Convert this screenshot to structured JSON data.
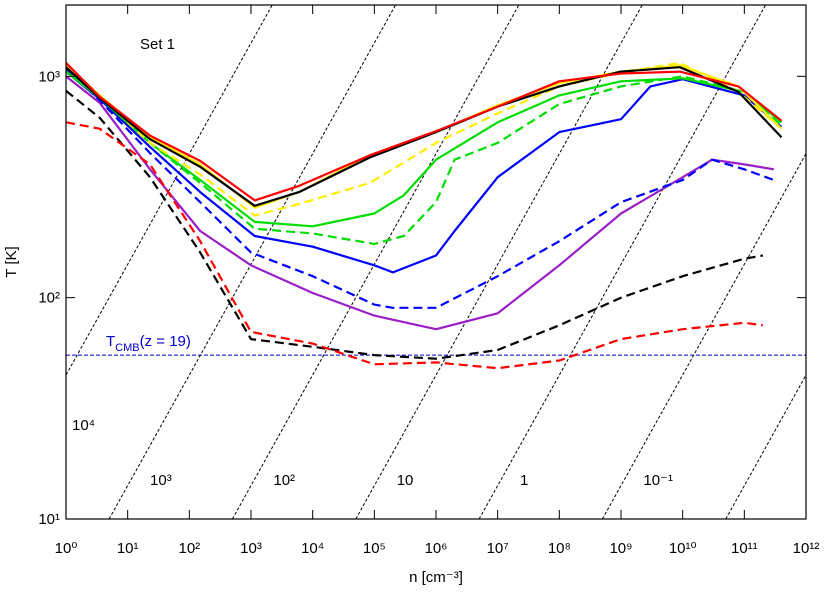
{
  "chart_data": {
    "type": "line",
    "annotation": "Set 1",
    "xlabel": "n [cm⁻³]",
    "ylabel": "T [K]",
    "xscale": "log",
    "yscale": "log",
    "xlim": [
      1,
      1000000000000
    ],
    "ylim": [
      10,
      2100
    ],
    "xticks": [
      {
        "value": 1,
        "label": "10⁰"
      },
      {
        "value": 10,
        "label": "10¹"
      },
      {
        "value": 100,
        "label": "10²"
      },
      {
        "value": 1000,
        "label": "10³"
      },
      {
        "value": 10000,
        "label": "10⁴"
      },
      {
        "value": 100000,
        "label": "10⁵"
      },
      {
        "value": 1000000,
        "label": "10⁶"
      },
      {
        "value": 10000000,
        "label": "10⁷"
      },
      {
        "value": 100000000,
        "label": "10⁸"
      },
      {
        "value": 1000000000,
        "label": "10⁹"
      },
      {
        "value": 10000000000,
        "label": "10¹⁰"
      },
      {
        "value": 100000000000,
        "label": "10¹¹"
      },
      {
        "value": 1000000000000,
        "label": "10¹²"
      }
    ],
    "yticks": [
      {
        "value": 10,
        "label": "10¹"
      },
      {
        "value": 100,
        "label": "10²"
      },
      {
        "value": 1000,
        "label": "10³"
      }
    ],
    "hline": {
      "value": 55,
      "color": "#0000cc",
      "label_parts": [
        "T",
        "CMB",
        "(z = 19)"
      ]
    },
    "reference_lines": [
      {
        "label": "10⁴",
        "x": [
          0.05,
          50000
        ],
        "y": [
          10,
          10000
        ]
      },
      {
        "label": "10³",
        "x": [
          5,
          5000000
        ],
        "y": [
          10,
          10000
        ]
      },
      {
        "label": "10²",
        "x": [
          500,
          500000000
        ],
        "y": [
          10,
          10000
        ]
      },
      {
        "label": "10",
        "x": [
          50000,
          50000000000
        ],
        "y": [
          10,
          10000
        ]
      },
      {
        "label": "1",
        "x": [
          5000000,
          5000000000000
        ],
        "y": [
          10,
          10000
        ]
      },
      {
        "label": "10⁻¹",
        "x": [
          500000000,
          500000000000000
        ],
        "y": [
          10,
          10000
        ]
      },
      {
        "label": null,
        "x": [
          50000000000,
          50000000000000000
        ],
        "y": [
          10,
          10000
        ]
      }
    ],
    "series": [
      {
        "color": "#9a1fc8",
        "dashed": false,
        "x": [
          1,
          3.5,
          23,
          150,
          1000,
          10000,
          100000,
          1000000,
          10000000,
          100000000,
          1000000000,
          10000000000,
          30000000000,
          100000000000,
          300000000000
        ],
        "values": [
          1000,
          760,
          380,
          200,
          140,
          105,
          83,
          72,
          85,
          140,
          240,
          350,
          420,
          400,
          380
        ]
      },
      {
        "color": "#0000ff",
        "dashed": true,
        "x": [
          1,
          3.5,
          23,
          150,
          1000,
          10000,
          100000,
          200000,
          1000000,
          10000000,
          100000000,
          1000000000,
          10000000000,
          30000000000,
          100000000000,
          300000000000
        ],
        "values": [
          1080,
          780,
          450,
          270,
          160,
          125,
          93,
          90,
          90,
          125,
          180,
          270,
          340,
          420,
          380,
          340
        ]
      },
      {
        "color": "#0000ff",
        "dashed": false,
        "x": [
          1,
          3.5,
          23,
          150,
          1150,
          10000,
          100000,
          200000,
          1000000,
          2000000,
          10000000,
          100000000,
          1000000000,
          3000000000,
          10000000000,
          100000000000,
          400000000000
        ],
        "values": [
          1050,
          790,
          480,
          300,
          190,
          170,
          140,
          130,
          155,
          200,
          350,
          560,
          640,
          900,
          970,
          820,
          590
        ]
      },
      {
        "color": "#00dd00",
        "dashed": true,
        "x": [
          1,
          3.5,
          23,
          150,
          1150,
          10000,
          100000,
          300000,
          1000000,
          2000000,
          10000000,
          100000000,
          1000000000,
          10000000000,
          100000000000,
          400000000000
        ],
        "values": [
          1100,
          820,
          500,
          330,
          205,
          195,
          175,
          190,
          270,
          420,
          500,
          750,
          900,
          1000,
          850,
          600
        ]
      },
      {
        "color": "#00dd00",
        "dashed": false,
        "x": [
          1,
          3.5,
          23,
          150,
          1150,
          10000,
          100000,
          300000,
          1000000,
          10000000,
          100000000,
          1000000000,
          10000000000,
          100000000000,
          400000000000
        ],
        "values": [
          1050,
          800,
          500,
          340,
          220,
          210,
          240,
          290,
          420,
          620,
          820,
          950,
          980,
          850,
          620
        ]
      },
      {
        "color": "#ffee00",
        "dashed": true,
        "x": [
          1,
          3.5,
          23,
          150,
          1150,
          6000,
          85000,
          1000000,
          10000000,
          100000000,
          1000000000,
          9000000000,
          80000000000,
          400000000000
        ],
        "values": [
          1130,
          820,
          500,
          360,
          235,
          265,
          330,
          500,
          680,
          900,
          1040,
          1150,
          850,
          580
        ]
      },
      {
        "color": "#ffee00",
        "dashed": false,
        "x": [
          1,
          3.5,
          23,
          150,
          1150,
          6000,
          85000,
          1000000,
          10000000,
          100000000,
          1000000000,
          9000000000,
          80000000000,
          400000000000
        ],
        "values": [
          1100,
          820,
          530,
          400,
          255,
          300,
          440,
          560,
          740,
          930,
          1050,
          1120,
          900,
          580
        ]
      },
      {
        "color": "#000000",
        "dashed": false,
        "x": [
          1,
          3.5,
          23,
          150,
          1150,
          6000,
          85000,
          1000000,
          10000000,
          100000000,
          1000000000,
          9000000000,
          80000000000,
          400000000000
        ],
        "values": [
          1100,
          800,
          520,
          390,
          260,
          300,
          430,
          560,
          730,
          900,
          1050,
          1100,
          850,
          530
        ]
      },
      {
        "color": "#ff0000",
        "dashed": false,
        "x": [
          1,
          3.5,
          23,
          150,
          1150,
          6000,
          85000,
          1000000,
          10000000,
          100000000,
          1000000000,
          9000000000,
          80000000000,
          400000000000
        ],
        "values": [
          1150,
          810,
          540,
          415,
          275,
          320,
          440,
          565,
          730,
          950,
          1030,
          1050,
          900,
          630
        ]
      },
      {
        "color": "#000000",
        "dashed": true,
        "x": [
          1,
          3.5,
          23,
          150,
          1000,
          10000,
          100000,
          1000000,
          10000000,
          100000000,
          1000000000,
          10000000000,
          100000000000,
          200000000000
        ],
        "values": [
          860,
          650,
          350,
          160,
          65,
          60,
          55,
          53,
          58,
          75,
          100,
          125,
          150,
          155
        ]
      },
      {
        "color": "#ff0000",
        "dashed": true,
        "x": [
          1,
          3.5,
          23,
          150,
          1000,
          10000,
          100000,
          1000000,
          10000000,
          100000000,
          1000000000,
          10000000000,
          100000000000,
          200000000000
        ],
        "values": [
          620,
          580,
          400,
          180,
          70,
          62,
          50,
          51,
          48,
          52,
          65,
          72,
          77,
          75
        ]
      }
    ]
  }
}
